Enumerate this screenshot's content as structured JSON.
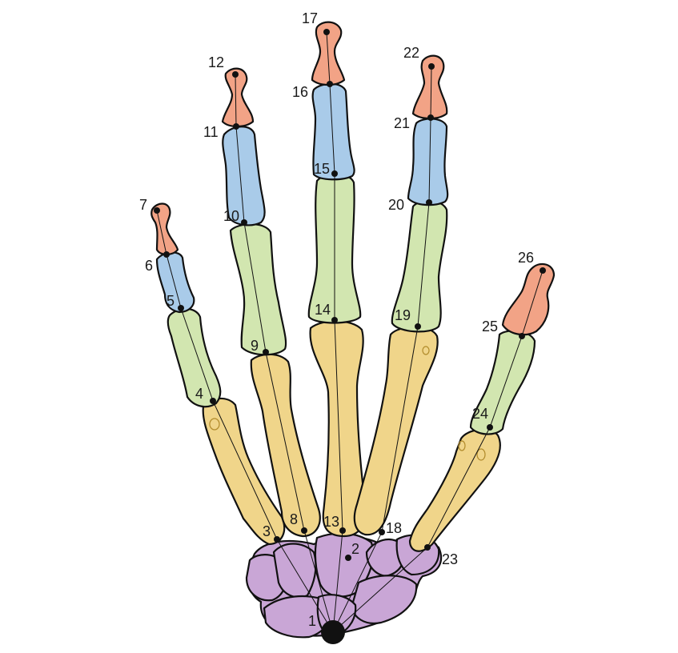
{
  "colors": {
    "carpal": "#c9a6d6",
    "metacarpal": "#f0d58a",
    "proximal_phalanx": "#d2e6b0",
    "middle_phalanx": "#a9cbe9",
    "distal_phalanx": "#f2a386",
    "outline": "#111111",
    "background": "#ffffff"
  },
  "labels": [
    "1",
    "2",
    "3",
    "4",
    "5",
    "6",
    "7",
    "8",
    "9",
    "10",
    "11",
    "12",
    "13",
    "14",
    "15",
    "16",
    "17",
    "18",
    "19",
    "20",
    "21",
    "22",
    "23",
    "24",
    "25",
    "26"
  ]
}
